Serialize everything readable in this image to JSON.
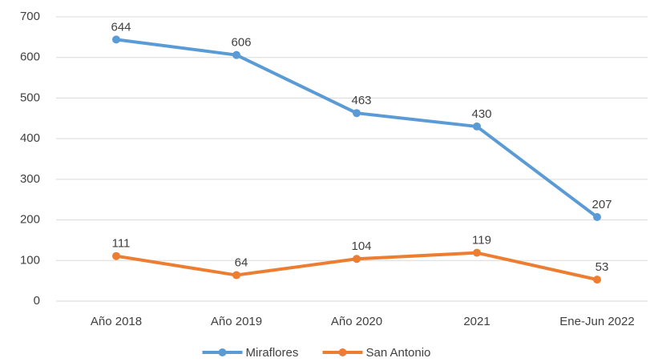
{
  "chart_data": {
    "type": "line",
    "categories": [
      "Año 2018",
      "Año 2019",
      "Año 2020",
      "2021",
      "Ene-Jun 2022"
    ],
    "series": [
      {
        "name": "Miraflores",
        "color": "#5b9bd5",
        "values": [
          644,
          606,
          463,
          430,
          207
        ]
      },
      {
        "name": "San Antonio",
        "color": "#ed7d31",
        "values": [
          111,
          64,
          104,
          119,
          53
        ]
      }
    ],
    "ylim": [
      0,
      700
    ],
    "yticks": [
      0,
      100,
      200,
      300,
      400,
      500,
      600,
      700
    ],
    "grid": true,
    "legend": "bottom"
  }
}
